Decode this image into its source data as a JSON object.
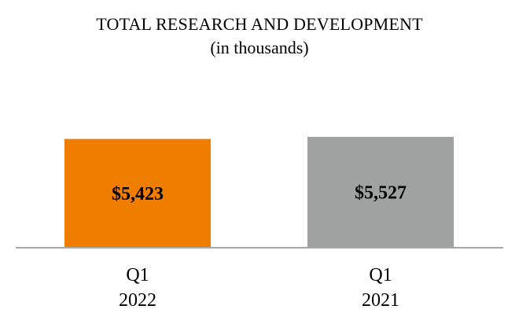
{
  "chart_data": {
    "type": "bar",
    "title": "TOTAL RESEARCH AND DEVELOPMENT",
    "subtitle": "(in thousands)",
    "categories": [
      {
        "line1": "Q1",
        "line2": "2022"
      },
      {
        "line1": "Q1",
        "line2": "2021"
      }
    ],
    "values": [
      5423,
      5527
    ],
    "value_labels": [
      "$5,423",
      "$5,527"
    ],
    "colors": [
      "#ee7d00",
      "#a0a2a1"
    ],
    "axis_color": "#a6a6a6",
    "xlabel": "",
    "ylabel": "",
    "grid": false,
    "legend": "none"
  }
}
